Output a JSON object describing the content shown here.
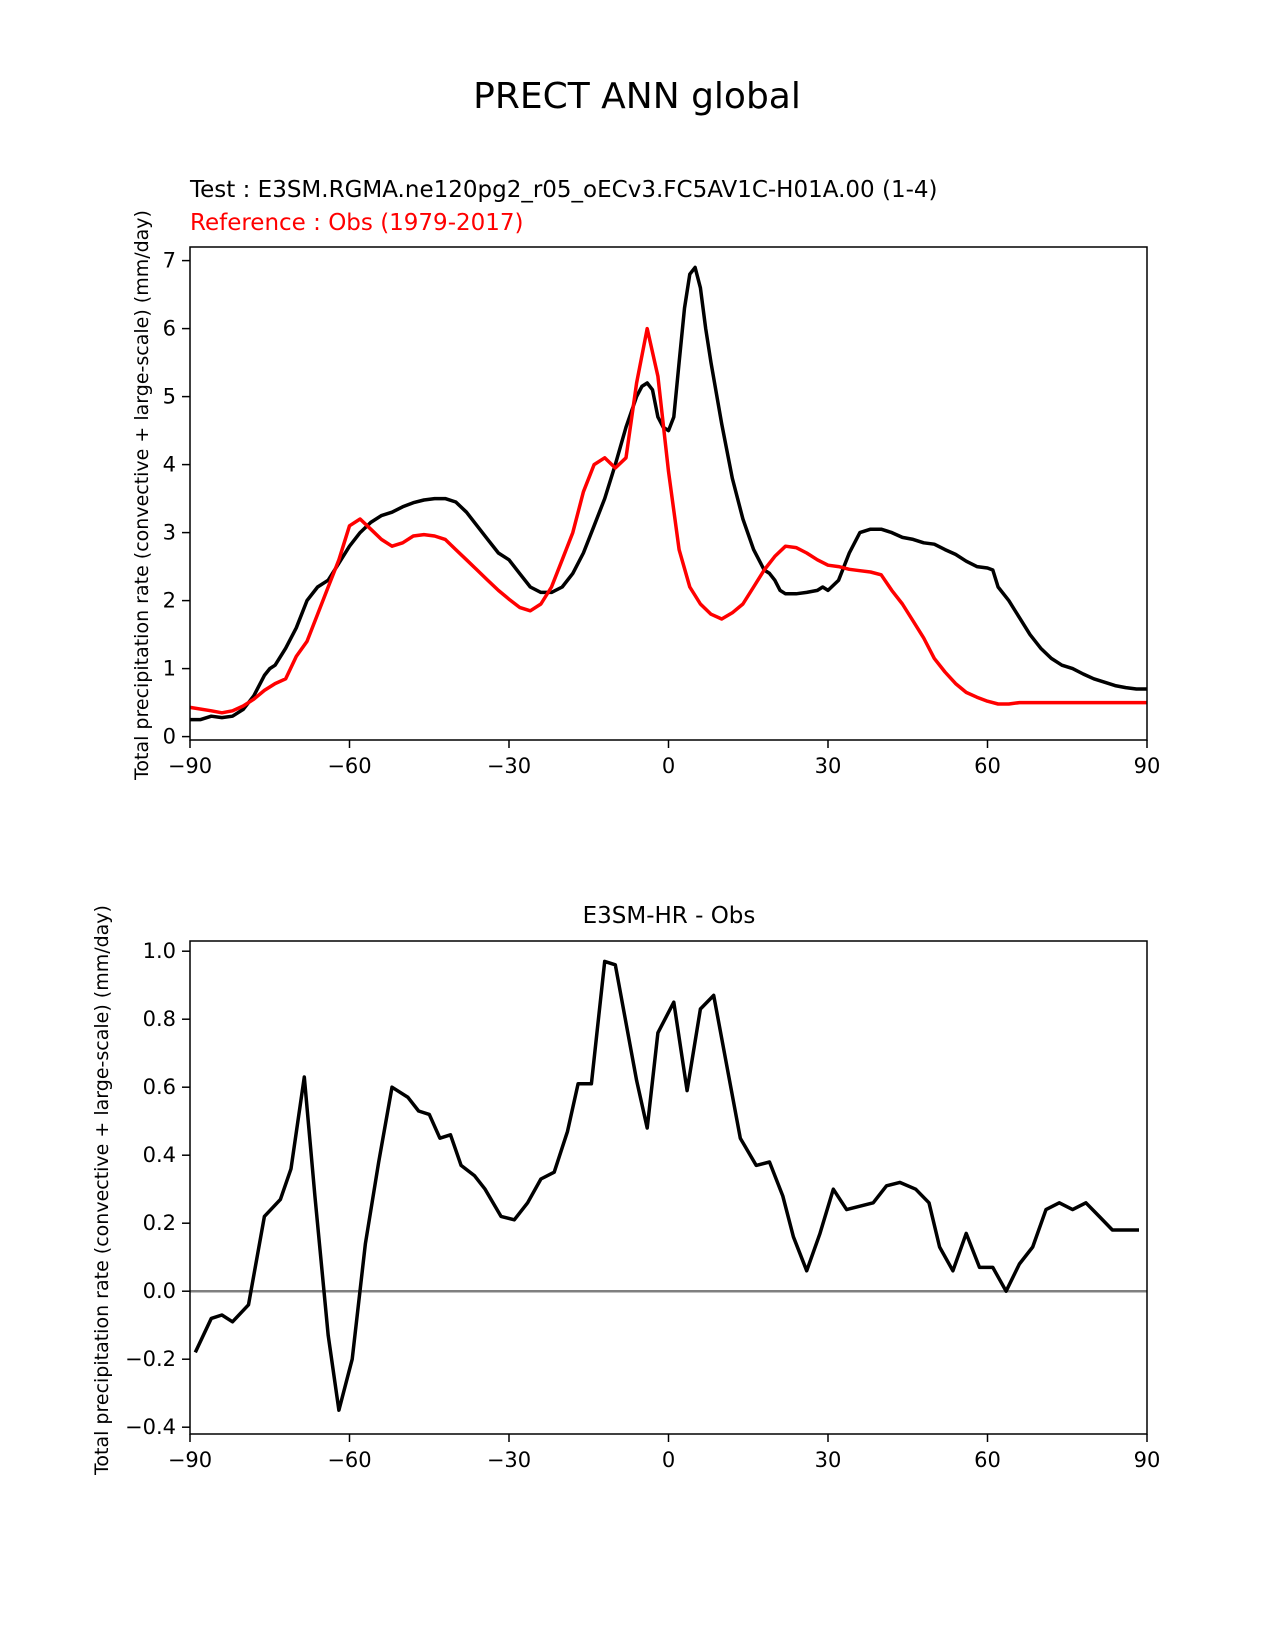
{
  "figure_title": "PRECT ANN global",
  "colors": {
    "test": "#000000",
    "reference": "#ff0000",
    "zero_line": "#808080"
  },
  "chart_data": [
    {
      "type": "line",
      "title_test": "Test : E3SM.RGMA.ne120pg2_r05_oECv3.FC5AV1C-H01A.00 (1-4)",
      "title_reference": "Reference : Obs (1979-2017)",
      "xlabel": "",
      "ylabel": "Total precipitation rate (convective + large-scale) (mm/day)",
      "xlim": [
        -90,
        90
      ],
      "ylim": [
        -0.05,
        7.2
      ],
      "xticks": [
        -90,
        -60,
        -30,
        0,
        30,
        60,
        90
      ],
      "xtick_labels": [
        "−90",
        "−60",
        "−30",
        "0",
        "30",
        "60",
        "90"
      ],
      "yticks": [
        0,
        1,
        2,
        3,
        4,
        5,
        6,
        7
      ],
      "ytick_labels": [
        "0",
        "1",
        "2",
        "3",
        "4",
        "5",
        "6",
        "7"
      ],
      "series": [
        {
          "name": "Test",
          "color": "#000000",
          "x": [
            -90,
            -88,
            -86,
            -84,
            -82,
            -80,
            -78,
            -76,
            -75,
            -74,
            -72,
            -70,
            -68,
            -66,
            -64,
            -62,
            -60,
            -58,
            -56,
            -54,
            -52,
            -50,
            -48,
            -46,
            -44,
            -42,
            -40,
            -38,
            -36,
            -34,
            -32,
            -30,
            -28,
            -26,
            -24,
            -22,
            -20,
            -18,
            -16,
            -14,
            -12,
            -10,
            -8,
            -6,
            -5,
            -4,
            -3,
            -2,
            -1,
            0,
            1,
            2,
            3,
            4,
            5,
            6,
            7,
            8,
            10,
            12,
            14,
            16,
            18,
            19,
            20,
            21,
            22,
            23,
            24,
            26,
            28,
            29,
            30,
            32,
            34,
            36,
            38,
            40,
            42,
            44,
            46,
            48,
            50,
            52,
            54,
            56,
            58,
            60,
            61,
            62,
            64,
            66,
            68,
            70,
            72,
            74,
            76,
            78,
            80,
            82,
            84,
            86,
            88,
            90
          ],
          "y": [
            0.25,
            0.25,
            0.3,
            0.28,
            0.3,
            0.4,
            0.6,
            0.9,
            1.0,
            1.05,
            1.3,
            1.6,
            2.0,
            2.2,
            2.3,
            2.55,
            2.8,
            3.0,
            3.15,
            3.25,
            3.3,
            3.38,
            3.44,
            3.48,
            3.5,
            3.5,
            3.45,
            3.3,
            3.1,
            2.9,
            2.7,
            2.6,
            2.4,
            2.2,
            2.12,
            2.12,
            2.2,
            2.4,
            2.7,
            3.1,
            3.5,
            4.0,
            4.55,
            5.0,
            5.15,
            5.2,
            5.1,
            4.7,
            4.55,
            4.5,
            4.7,
            5.5,
            6.3,
            6.8,
            6.9,
            6.6,
            6.0,
            5.5,
            4.6,
            3.8,
            3.2,
            2.75,
            2.45,
            2.4,
            2.3,
            2.15,
            2.1,
            2.1,
            2.1,
            2.12,
            2.15,
            2.2,
            2.15,
            2.3,
            2.7,
            3.0,
            3.05,
            3.05,
            3.0,
            2.93,
            2.9,
            2.85,
            2.83,
            2.75,
            2.68,
            2.58,
            2.5,
            2.48,
            2.45,
            2.2,
            2.0,
            1.75,
            1.5,
            1.3,
            1.15,
            1.05,
            1.0,
            0.92,
            0.85,
            0.8,
            0.75,
            0.72,
            0.7,
            0.7
          ]
        },
        {
          "name": "Reference",
          "color": "#ff0000",
          "x": [
            -90,
            -86,
            -84,
            -82,
            -80,
            -78,
            -76,
            -74,
            -72,
            -70,
            -68,
            -66,
            -64,
            -62,
            -60,
            -58,
            -56,
            -54,
            -52,
            -50,
            -48,
            -46,
            -44,
            -42,
            -40,
            -38,
            -36,
            -34,
            -32,
            -30,
            -28,
            -26,
            -24,
            -22,
            -20,
            -18,
            -16,
            -14,
            -12,
            -10,
            -8,
            -6,
            -4,
            -2,
            0,
            2,
            4,
            6,
            8,
            10,
            12,
            14,
            16,
            18,
            20,
            22,
            24,
            26,
            28,
            30,
            32,
            34,
            36,
            38,
            40,
            42,
            44,
            46,
            48,
            50,
            52,
            54,
            56,
            58,
            60,
            62,
            64,
            66,
            68,
            70,
            72,
            74,
            76,
            78,
            80,
            82,
            84,
            86,
            88,
            90
          ],
          "y": [
            0.43,
            0.38,
            0.35,
            0.38,
            0.45,
            0.55,
            0.68,
            0.78,
            0.85,
            1.18,
            1.4,
            1.8,
            2.2,
            2.6,
            3.1,
            3.2,
            3.05,
            2.9,
            2.8,
            2.85,
            2.95,
            2.97,
            2.95,
            2.9,
            2.75,
            2.6,
            2.45,
            2.3,
            2.15,
            2.02,
            1.9,
            1.85,
            1.95,
            2.2,
            2.6,
            3.0,
            3.6,
            4.0,
            4.1,
            3.95,
            4.1,
            5.2,
            6.0,
            5.3,
            3.9,
            2.75,
            2.2,
            1.95,
            1.8,
            1.73,
            1.82,
            1.95,
            2.2,
            2.45,
            2.65,
            2.8,
            2.78,
            2.7,
            2.6,
            2.52,
            2.5,
            2.46,
            2.44,
            2.42,
            2.38,
            2.15,
            1.95,
            1.7,
            1.45,
            1.15,
            0.95,
            0.78,
            0.65,
            0.58,
            0.52,
            0.48,
            0.48,
            0.5,
            0.5,
            0.5,
            0.5,
            0.5,
            0.5,
            0.5,
            0.5,
            0.5,
            0.5,
            0.5,
            0.5,
            0.5
          ]
        }
      ]
    },
    {
      "type": "line",
      "title": "E3SM-HR - Obs",
      "xlabel": "",
      "ylabel": "Total precipitation rate (convective + large-scale) (mm/day)",
      "xlim": [
        -90,
        90
      ],
      "ylim": [
        -0.42,
        1.03
      ],
      "xticks": [
        -90,
        -60,
        -30,
        0,
        30,
        60,
        90
      ],
      "xtick_labels": [
        "−90",
        "−60",
        "−30",
        "0",
        "30",
        "60",
        "90"
      ],
      "yticks": [
        -0.4,
        -0.2,
        0.0,
        0.2,
        0.4,
        0.6,
        0.8,
        1.0
      ],
      "ytick_labels": [
        "−0.4",
        "−0.2",
        "0.0",
        "0.2",
        "0.4",
        "0.6",
        "0.8",
        "1.0"
      ],
      "zero_line": 0,
      "series": [
        {
          "name": "E3SM-HR - Obs",
          "color": "#000000",
          "x": [
            -89,
            -86,
            -84,
            -82,
            -79,
            -76,
            -73,
            -71,
            -68.5,
            -66.5,
            -64,
            -62,
            -59.5,
            -57,
            -54.5,
            -52,
            -49,
            -47,
            -45,
            -43,
            -41,
            -39,
            -36.5,
            -34.5,
            -31.5,
            -29,
            -26.5,
            -24,
            -21.5,
            -19,
            -17,
            -14.5,
            -12,
            -10,
            -6,
            -4,
            -2,
            1,
            3.5,
            6,
            8.5,
            11,
            13.5,
            16.5,
            19,
            21.5,
            23.5,
            26,
            28.5,
            31,
            33.5,
            36,
            38.5,
            41,
            43.5,
            46.5,
            49,
            51,
            53.5,
            56,
            58.5,
            61,
            63.5,
            66,
            68.5,
            71,
            73.5,
            76,
            78.5,
            81,
            83.5,
            86,
            88.5
          ],
          "y": [
            -0.18,
            -0.08,
            -0.07,
            -0.09,
            -0.04,
            0.22,
            0.27,
            0.36,
            0.63,
            0.28,
            -0.13,
            -0.35,
            -0.2,
            0.14,
            0.38,
            0.6,
            0.57,
            0.53,
            0.52,
            0.45,
            0.46,
            0.37,
            0.34,
            0.3,
            0.22,
            0.21,
            0.26,
            0.33,
            0.35,
            0.47,
            0.61,
            0.61,
            0.97,
            0.96,
            0.62,
            0.48,
            0.76,
            0.85,
            0.59,
            0.83,
            0.87,
            0.66,
            0.45,
            0.37,
            0.38,
            0.28,
            0.16,
            0.06,
            0.17,
            0.3,
            0.24,
            0.25,
            0.26,
            0.31,
            0.32,
            0.3,
            0.26,
            0.13,
            0.06,
            0.17,
            0.07,
            0.07,
            0.0,
            0.08,
            0.13,
            0.24,
            0.26,
            0.24,
            0.26,
            0.22,
            0.18,
            0.18,
            0.18
          ]
        }
      ]
    }
  ]
}
